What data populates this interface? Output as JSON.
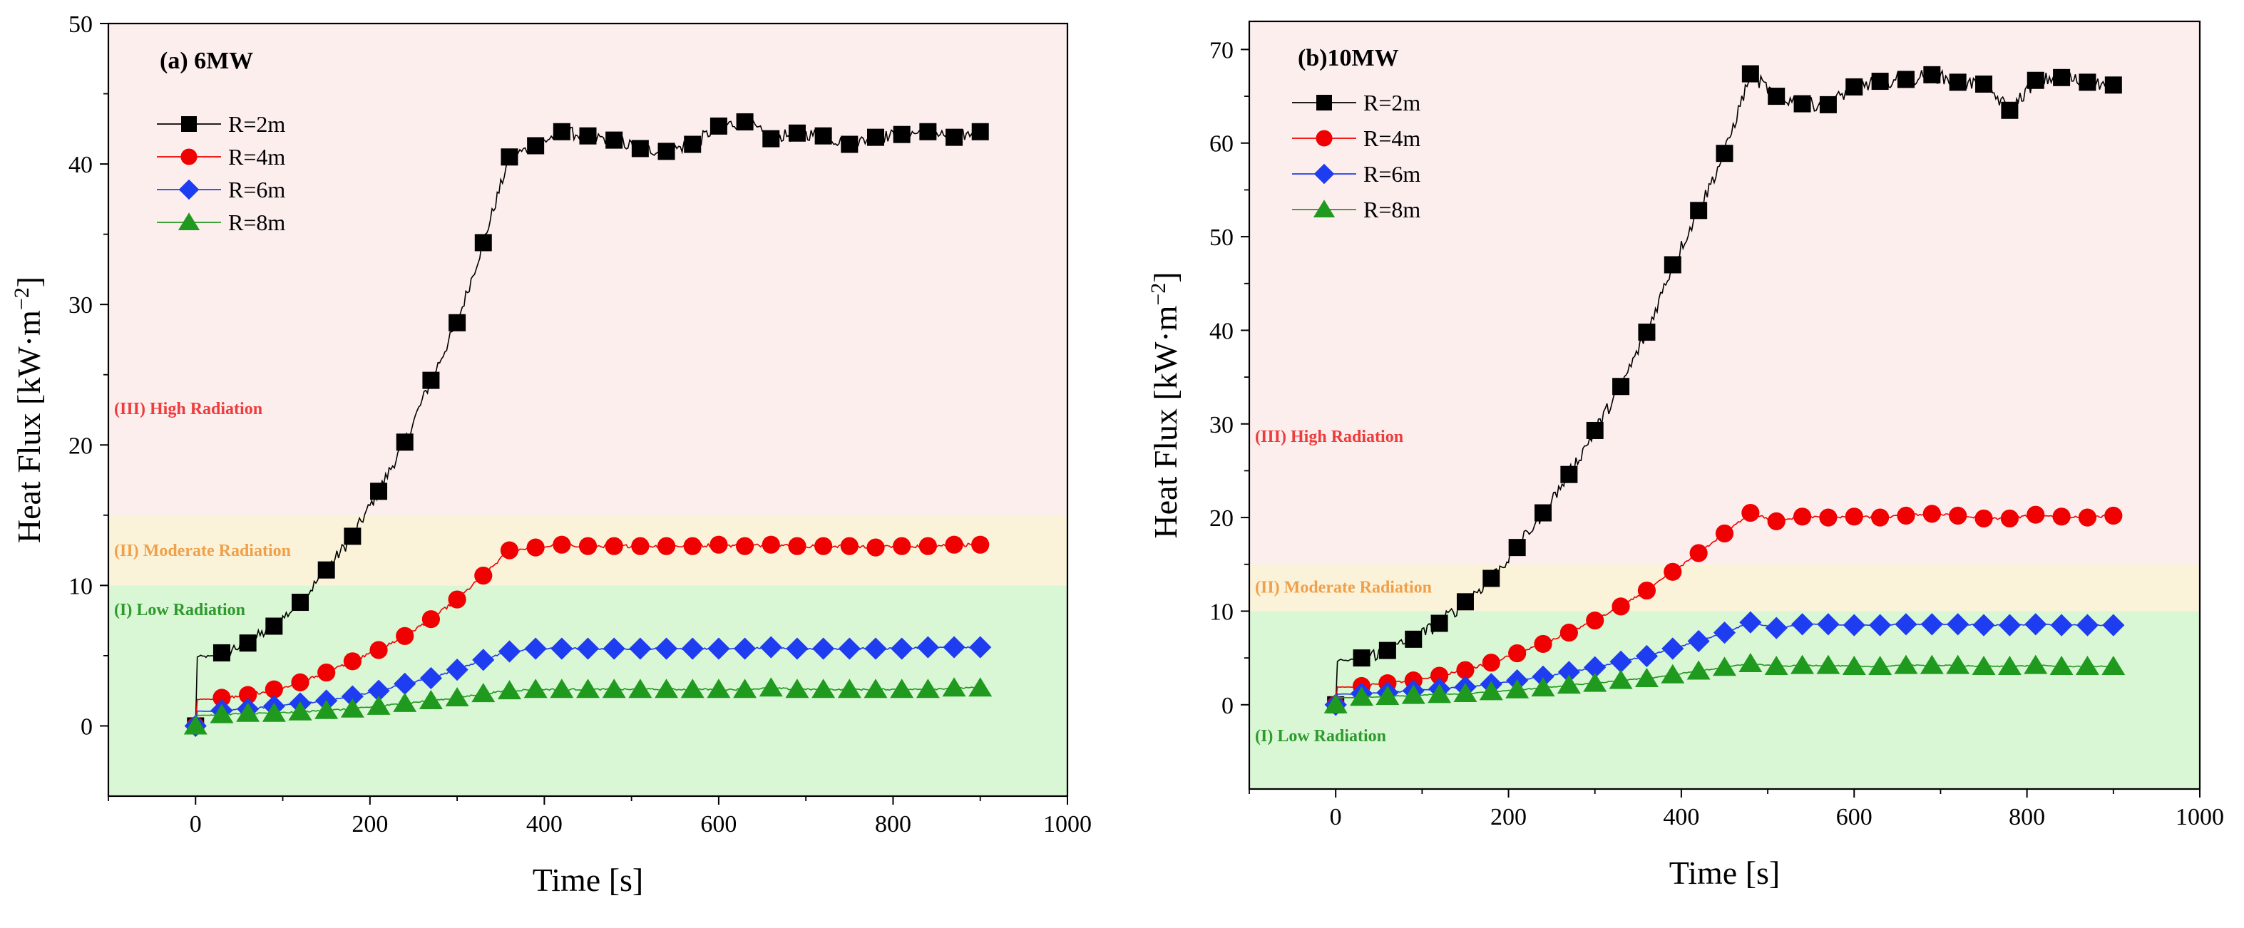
{
  "panels": [
    {
      "id": "a",
      "title": "(a) 6MW",
      "xlabel": "Time [s]",
      "ylabel_main": "Heat Flux [kW·m",
      "ylabel_exp": "−2",
      "ylabel_close": "]",
      "xlim": [
        -100,
        1000
      ],
      "ylim": [
        -5,
        50
      ],
      "xticks": [
        0,
        200,
        400,
        600,
        800,
        1000
      ],
      "yticks": [
        0,
        10,
        20,
        30,
        40,
        50
      ],
      "regions": [
        {
          "label": "(I) Low Radiation",
          "from": -5,
          "to": 10,
          "fill": "#d9f7d4",
          "text_color": "#2e9a2e",
          "label_y": 8.3
        },
        {
          "label": "(II) Moderate Radiation",
          "from": 10,
          "to": 15,
          "fill": "#fbf3d9",
          "text_color": "#f0a04a",
          "label_y": 12.5
        },
        {
          "label": "(III)  High Radiation",
          "from": 15,
          "to": 50,
          "fill": "#fdeeee",
          "text_color": "#ee3b3b",
          "label_y": 22.6
        }
      ],
      "series": [
        {
          "name": "R=2m",
          "marker": "square",
          "color": "#000000",
          "x": [
            0,
            30,
            60,
            90,
            120,
            150,
            180,
            210,
            240,
            270,
            300,
            330,
            360,
            390,
            420,
            450,
            480,
            510,
            540,
            570,
            600,
            630,
            660,
            690,
            720,
            750,
            780,
            810,
            840,
            870,
            900
          ],
          "y": [
            0,
            5.2,
            5.9,
            7.1,
            8.8,
            11.1,
            13.5,
            16.7,
            20.2,
            24.6,
            28.7,
            34.4,
            40.5,
            41.3,
            42.3,
            42.0,
            41.7,
            41.1,
            40.9,
            41.4,
            42.7,
            43.0,
            41.8,
            42.2,
            42.0,
            41.4,
            41.9,
            42.1,
            42.3,
            41.9,
            42.3
          ]
        },
        {
          "name": "R=4m",
          "marker": "circle",
          "color": "#f00000",
          "x": [
            0,
            30,
            60,
            90,
            120,
            150,
            180,
            210,
            240,
            270,
            300,
            330,
            360,
            390,
            420,
            450,
            480,
            510,
            540,
            570,
            600,
            630,
            660,
            690,
            720,
            750,
            780,
            810,
            840,
            870,
            900
          ],
          "y": [
            0,
            2.0,
            2.2,
            2.6,
            3.1,
            3.8,
            4.6,
            5.4,
            6.4,
            7.6,
            9.0,
            10.7,
            12.5,
            12.7,
            12.9,
            12.8,
            12.8,
            12.8,
            12.8,
            12.8,
            12.9,
            12.8,
            12.9,
            12.8,
            12.8,
            12.8,
            12.7,
            12.8,
            12.8,
            12.9,
            12.9
          ]
        },
        {
          "name": "R=6m",
          "marker": "diamond",
          "color": "#1e3cf0",
          "x": [
            0,
            30,
            60,
            90,
            120,
            150,
            180,
            210,
            240,
            270,
            300,
            330,
            360,
            390,
            420,
            450,
            480,
            510,
            540,
            570,
            600,
            630,
            660,
            690,
            720,
            750,
            780,
            810,
            840,
            870,
            900
          ],
          "y": [
            0,
            1.1,
            1.2,
            1.4,
            1.6,
            1.8,
            2.1,
            2.5,
            3.0,
            3.4,
            4.0,
            4.7,
            5.3,
            5.5,
            5.5,
            5.5,
            5.5,
            5.5,
            5.5,
            5.5,
            5.5,
            5.5,
            5.6,
            5.5,
            5.5,
            5.5,
            5.5,
            5.5,
            5.6,
            5.6,
            5.6
          ]
        },
        {
          "name": "R=8m",
          "marker": "triangle",
          "color": "#1f9a1f",
          "x": [
            0,
            30,
            60,
            90,
            120,
            150,
            180,
            210,
            240,
            270,
            300,
            330,
            360,
            390,
            420,
            450,
            480,
            510,
            540,
            570,
            600,
            630,
            660,
            690,
            720,
            750,
            780,
            810,
            840,
            870,
            900
          ],
          "y": [
            0,
            0.8,
            0.9,
            0.9,
            1.0,
            1.1,
            1.2,
            1.4,
            1.6,
            1.8,
            2.0,
            2.3,
            2.5,
            2.6,
            2.6,
            2.6,
            2.6,
            2.6,
            2.6,
            2.6,
            2.6,
            2.6,
            2.7,
            2.6,
            2.6,
            2.6,
            2.6,
            2.6,
            2.6,
            2.7,
            2.7
          ]
        }
      ]
    },
    {
      "id": "b",
      "title": "(b)10MW",
      "xlabel": "Time [s]",
      "ylabel_main": "Heat Flux [kW·m",
      "ylabel_exp": "−2",
      "ylabel_close": "]",
      "xlim": [
        -100,
        1000
      ],
      "ylim": [
        -9,
        73
      ],
      "xticks": [
        0,
        200,
        400,
        600,
        800,
        1000
      ],
      "yticks": [
        0,
        10,
        20,
        30,
        40,
        50,
        60,
        70
      ],
      "regions": [
        {
          "label": "(I) Low Radiation",
          "from": -9,
          "to": 10,
          "fill": "#d9f7d4",
          "text_color": "#2e9a2e",
          "label_y": -3.3
        },
        {
          "label": "(II) Moderate Radiation",
          "from": 10,
          "to": 15,
          "fill": "#fbf3d9",
          "text_color": "#f0a04a",
          "label_y": 12.6
        },
        {
          "label": "(III)  High Radiation",
          "from": 15,
          "to": 73,
          "fill": "#fdeeee",
          "text_color": "#ee3b3b",
          "label_y": 28.7
        }
      ],
      "series": [
        {
          "name": "R=2m",
          "marker": "square",
          "color": "#000000",
          "x": [
            0,
            30,
            60,
            90,
            120,
            150,
            180,
            210,
            240,
            270,
            300,
            330,
            360,
            390,
            420,
            450,
            480,
            510,
            540,
            570,
            600,
            630,
            660,
            690,
            720,
            750,
            780,
            810,
            840,
            870,
            900
          ],
          "y": [
            0,
            5.0,
            5.8,
            7.0,
            8.7,
            11.0,
            13.5,
            16.8,
            20.5,
            24.6,
            29.3,
            34.0,
            39.8,
            47.0,
            52.8,
            58.9,
            67.4,
            65.0,
            64.2,
            64.1,
            66.0,
            66.6,
            66.8,
            67.3,
            66.5,
            66.3,
            63.5,
            66.7,
            67.0,
            66.5,
            66.2
          ]
        },
        {
          "name": "R=4m",
          "marker": "circle",
          "color": "#f00000",
          "x": [
            0,
            30,
            60,
            90,
            120,
            150,
            180,
            210,
            240,
            270,
            300,
            330,
            360,
            390,
            420,
            450,
            480,
            510,
            540,
            570,
            600,
            630,
            660,
            690,
            720,
            750,
            780,
            810,
            840,
            870,
            900
          ],
          "y": [
            0,
            2.0,
            2.3,
            2.6,
            3.1,
            3.7,
            4.5,
            5.5,
            6.5,
            7.7,
            9.0,
            10.5,
            12.2,
            14.2,
            16.2,
            18.3,
            20.5,
            19.6,
            20.1,
            20.0,
            20.1,
            20.0,
            20.2,
            20.4,
            20.2,
            19.9,
            19.9,
            20.3,
            20.1,
            20.0,
            20.2
          ]
        },
        {
          "name": "R=6m",
          "marker": "diamond",
          "color": "#1e3cf0",
          "x": [
            0,
            30,
            60,
            90,
            120,
            150,
            180,
            210,
            240,
            270,
            300,
            330,
            360,
            390,
            420,
            450,
            480,
            510,
            540,
            570,
            600,
            630,
            660,
            690,
            720,
            750,
            780,
            810,
            840,
            870,
            900
          ],
          "y": [
            0,
            1.2,
            1.3,
            1.5,
            1.7,
            1.9,
            2.2,
            2.6,
            3.0,
            3.5,
            4.0,
            4.6,
            5.2,
            6.0,
            6.8,
            7.7,
            8.8,
            8.2,
            8.6,
            8.6,
            8.5,
            8.5,
            8.6,
            8.6,
            8.6,
            8.5,
            8.5,
            8.6,
            8.5,
            8.5,
            8.5
          ]
        },
        {
          "name": "R=8m",
          "marker": "triangle",
          "color": "#1f9a1f",
          "x": [
            0,
            30,
            60,
            90,
            120,
            150,
            180,
            210,
            240,
            270,
            300,
            330,
            360,
            390,
            420,
            450,
            480,
            510,
            540,
            570,
            600,
            630,
            660,
            690,
            720,
            750,
            780,
            810,
            840,
            870,
            900
          ],
          "y": [
            0,
            0.8,
            0.9,
            1.0,
            1.1,
            1.2,
            1.4,
            1.6,
            1.8,
            2.1,
            2.3,
            2.6,
            2.8,
            3.2,
            3.6,
            4.0,
            4.4,
            4.1,
            4.2,
            4.2,
            4.1,
            4.1,
            4.2,
            4.2,
            4.2,
            4.1,
            4.1,
            4.2,
            4.1,
            4.1,
            4.1
          ]
        }
      ]
    }
  ],
  "chart_data": [
    {
      "type": "line",
      "title": "(a) 6MW",
      "xlabel": "Time [s]",
      "ylabel": "Heat Flux [kW·m−2]",
      "xlim": [
        -100,
        1000
      ],
      "ylim": [
        -5,
        50
      ],
      "grid": false,
      "legend_position": "top-left",
      "x": [
        0,
        30,
        60,
        90,
        120,
        150,
        180,
        210,
        240,
        270,
        300,
        330,
        360,
        390,
        420,
        450,
        480,
        510,
        540,
        570,
        600,
        630,
        660,
        690,
        720,
        750,
        780,
        810,
        840,
        870,
        900
      ],
      "series": [
        {
          "name": "R=2m",
          "values": [
            0,
            5.2,
            5.9,
            7.1,
            8.8,
            11.1,
            13.5,
            16.7,
            20.2,
            24.6,
            28.7,
            34.4,
            40.5,
            41.3,
            42.3,
            42.0,
            41.7,
            41.1,
            40.9,
            41.4,
            42.7,
            43.0,
            41.8,
            42.2,
            42.0,
            41.4,
            41.9,
            42.1,
            42.3,
            41.9,
            42.3
          ]
        },
        {
          "name": "R=4m",
          "values": [
            0,
            2.0,
            2.2,
            2.6,
            3.1,
            3.8,
            4.6,
            5.4,
            6.4,
            7.6,
            9.0,
            10.7,
            12.5,
            12.7,
            12.9,
            12.8,
            12.8,
            12.8,
            12.8,
            12.8,
            12.9,
            12.8,
            12.9,
            12.8,
            12.8,
            12.8,
            12.7,
            12.8,
            12.8,
            12.9,
            12.9
          ]
        },
        {
          "name": "R=6m",
          "values": [
            0,
            1.1,
            1.2,
            1.4,
            1.6,
            1.8,
            2.1,
            2.5,
            3.0,
            3.4,
            4.0,
            4.7,
            5.3,
            5.5,
            5.5,
            5.5,
            5.5,
            5.5,
            5.5,
            5.5,
            5.5,
            5.5,
            5.6,
            5.5,
            5.5,
            5.5,
            5.5,
            5.5,
            5.6,
            5.6,
            5.6
          ]
        },
        {
          "name": "R=8m",
          "values": [
            0,
            0.8,
            0.9,
            0.9,
            1.0,
            1.1,
            1.2,
            1.4,
            1.6,
            1.8,
            2.0,
            2.3,
            2.5,
            2.6,
            2.6,
            2.6,
            2.6,
            2.6,
            2.6,
            2.6,
            2.6,
            2.6,
            2.7,
            2.6,
            2.6,
            2.6,
            2.6,
            2.6,
            2.6,
            2.7,
            2.7
          ]
        }
      ],
      "annotations": [
        "(I) Low Radiation",
        "(II) Moderate Radiation",
        "(III)  High Radiation"
      ]
    },
    {
      "type": "line",
      "title": "(b)10MW",
      "xlabel": "Time [s]",
      "ylabel": "Heat Flux [kW·m−2]",
      "xlim": [
        -100,
        1000
      ],
      "ylim": [
        -9,
        73
      ],
      "grid": false,
      "legend_position": "top-left",
      "x": [
        0,
        30,
        60,
        90,
        120,
        150,
        180,
        210,
        240,
        270,
        300,
        330,
        360,
        390,
        420,
        450,
        480,
        510,
        540,
        570,
        600,
        630,
        660,
        690,
        720,
        750,
        780,
        810,
        840,
        870,
        900
      ],
      "series": [
        {
          "name": "R=2m",
          "values": [
            0,
            5.0,
            5.8,
            7.0,
            8.7,
            11.0,
            13.5,
            16.8,
            20.5,
            24.6,
            29.3,
            34.0,
            39.8,
            47.0,
            52.8,
            58.9,
            67.4,
            65.0,
            64.2,
            64.1,
            66.0,
            66.6,
            66.8,
            67.3,
            66.5,
            66.3,
            63.5,
            66.7,
            67.0,
            66.5,
            66.2
          ]
        },
        {
          "name": "R=4m",
          "values": [
            0,
            2.0,
            2.3,
            2.6,
            3.1,
            3.7,
            4.5,
            5.5,
            6.5,
            7.7,
            9.0,
            10.5,
            12.2,
            14.2,
            16.2,
            18.3,
            20.5,
            19.6,
            20.1,
            20.0,
            20.1,
            20.0,
            20.2,
            20.4,
            20.2,
            19.9,
            19.9,
            20.3,
            20.1,
            20.0,
            20.2
          ]
        },
        {
          "name": "R=6m",
          "values": [
            0,
            1.2,
            1.3,
            1.5,
            1.7,
            1.9,
            2.2,
            2.6,
            3.0,
            3.5,
            4.0,
            4.6,
            5.2,
            6.0,
            6.8,
            7.7,
            8.8,
            8.2,
            8.6,
            8.6,
            8.5,
            8.5,
            8.6,
            8.6,
            8.6,
            8.5,
            8.5,
            8.6,
            8.5,
            8.5,
            8.5
          ]
        },
        {
          "name": "R=8m",
          "values": [
            0,
            0.8,
            0.9,
            1.0,
            1.1,
            1.2,
            1.4,
            1.6,
            1.8,
            2.1,
            2.3,
            2.6,
            2.8,
            3.2,
            3.6,
            4.0,
            4.4,
            4.1,
            4.2,
            4.2,
            4.1,
            4.1,
            4.2,
            4.2,
            4.2,
            4.1,
            4.1,
            4.2,
            4.1,
            4.1,
            4.1
          ]
        }
      ],
      "annotations": [
        "(I) Low Radiation",
        "(II) Moderate Radiation",
        "(III)  High Radiation"
      ]
    }
  ]
}
